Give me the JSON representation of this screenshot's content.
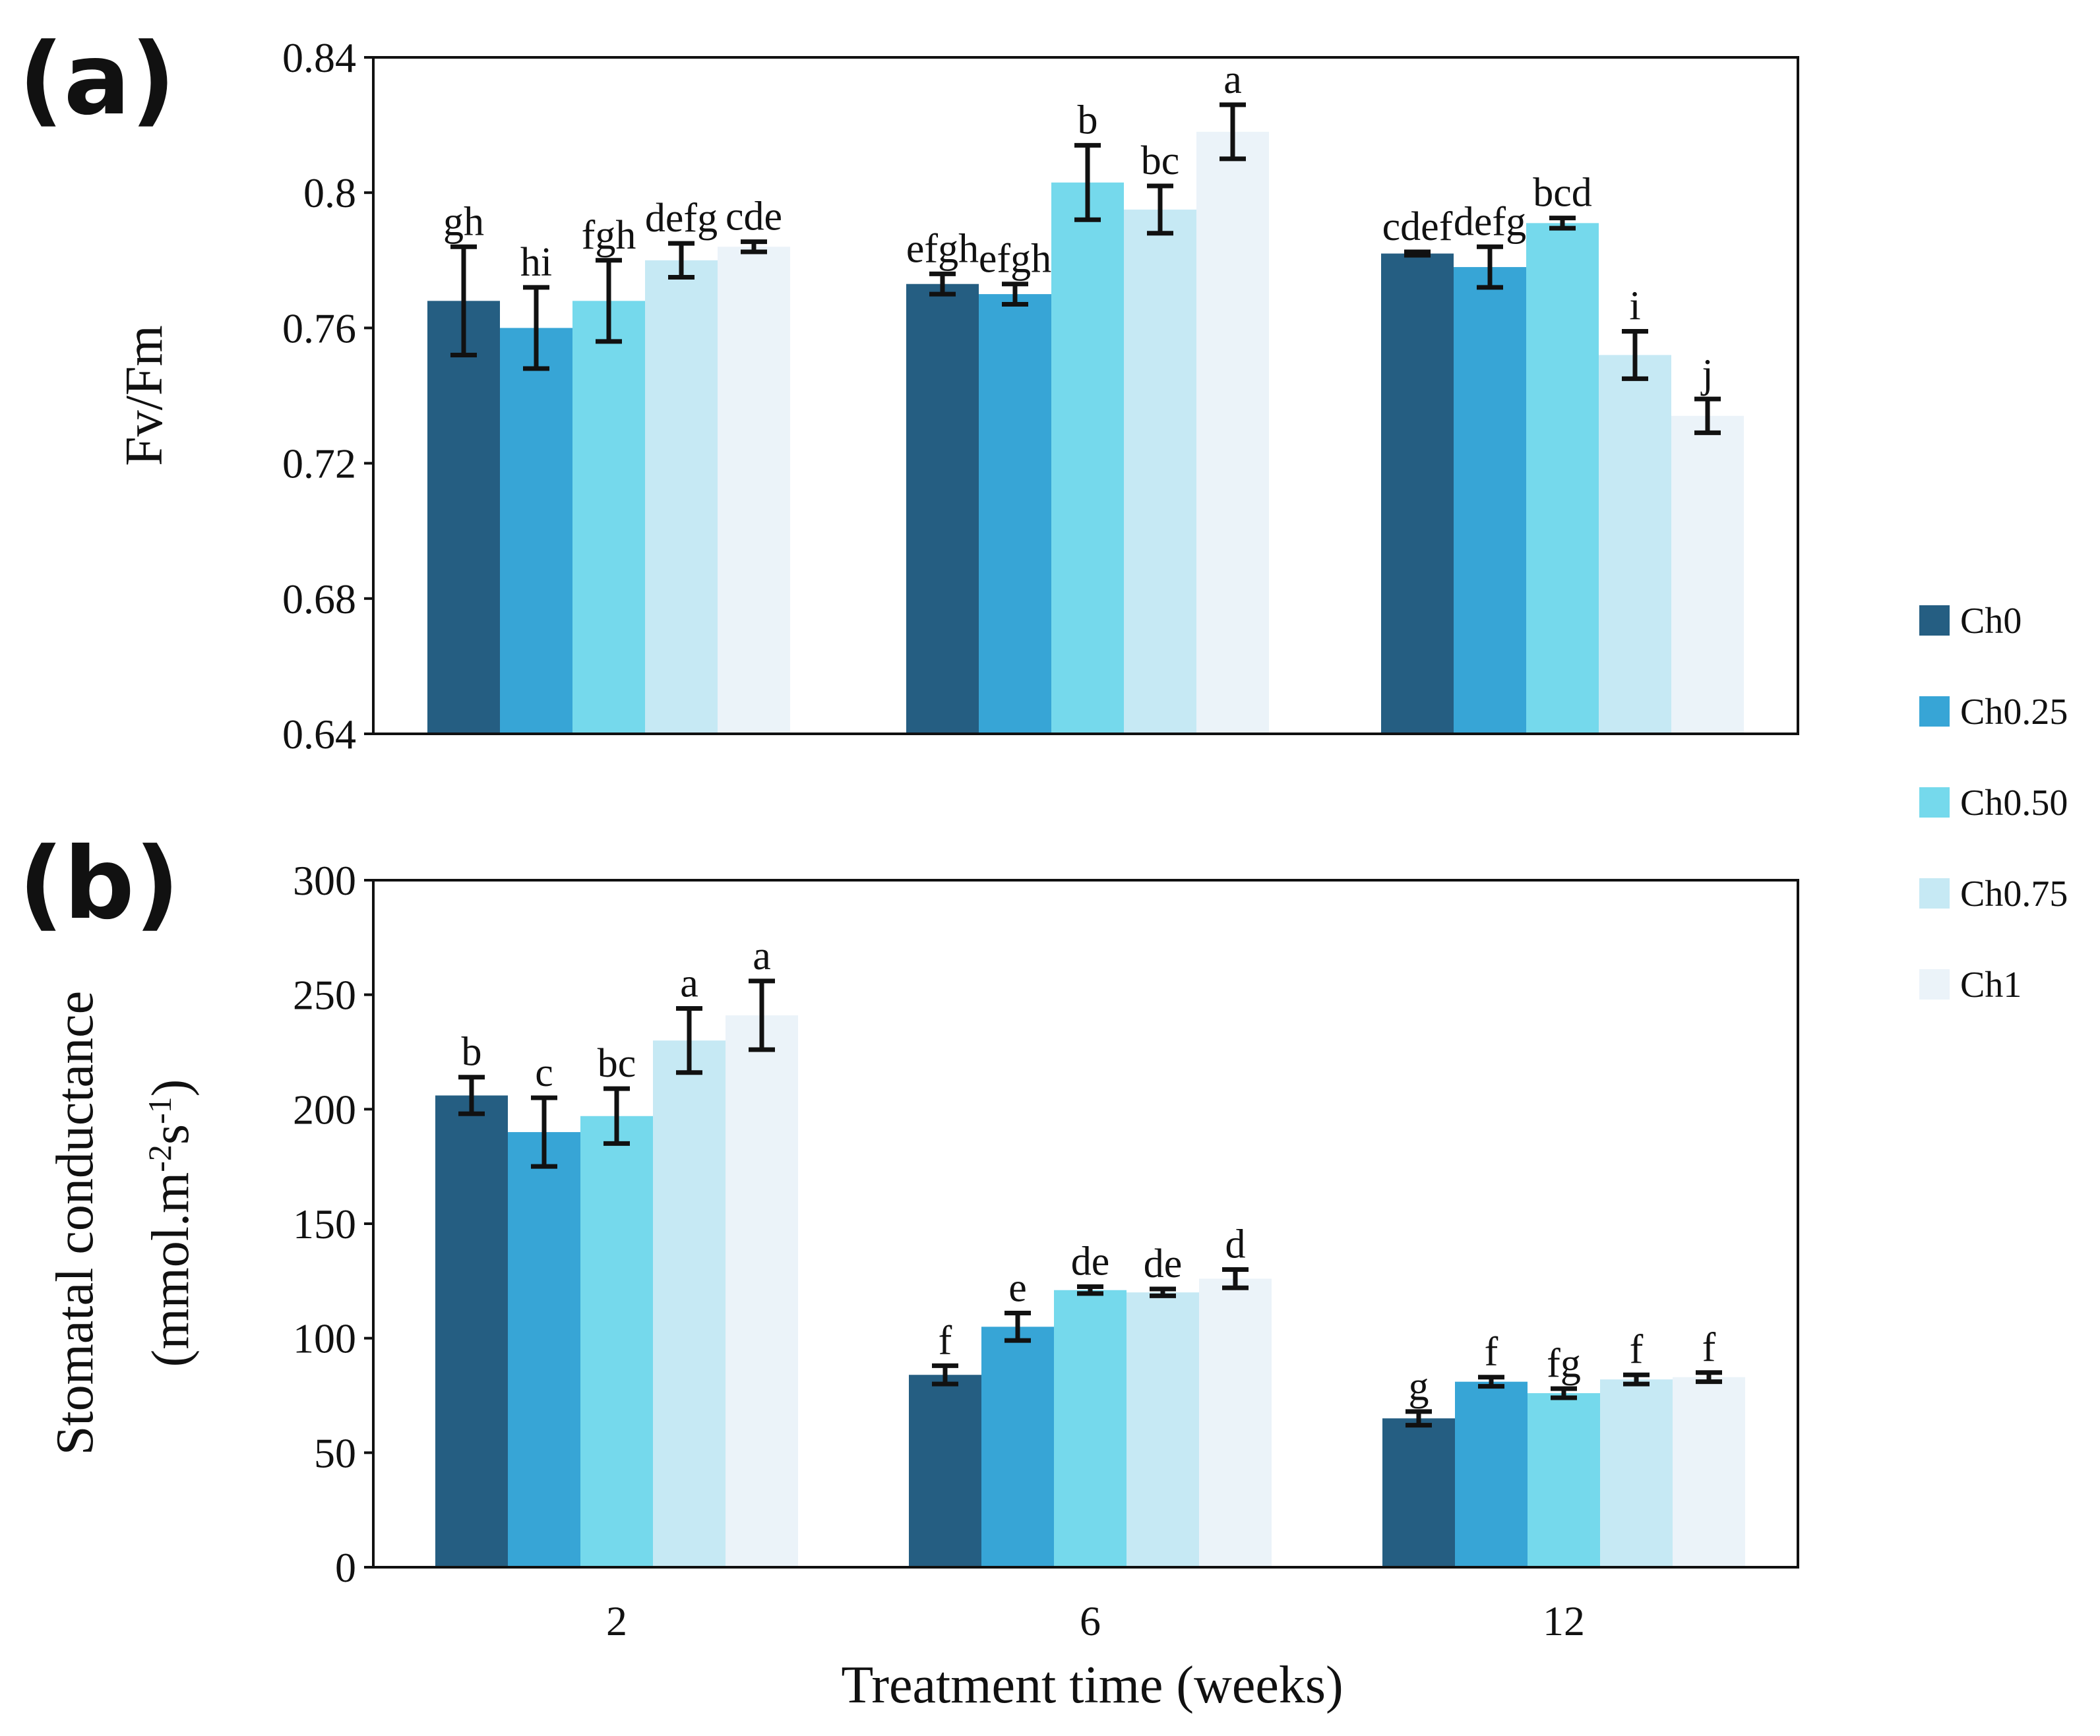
{
  "chart_data": [
    {
      "panel": "(a)",
      "type": "bar",
      "ylabel": "Fv/Fm",
      "ylim": [
        0.64,
        0.84
      ],
      "yticks": [
        "0.64",
        "0.68",
        "0.72",
        "0.76",
        "0.8",
        "0.84"
      ],
      "categories": [
        "2",
        "6",
        "12"
      ],
      "series": [
        {
          "name": "Ch0",
          "values": [
            0.768,
            0.773,
            0.782
          ],
          "errors": [
            0.016,
            0.003,
            0.0005
          ],
          "letters": [
            "gh",
            "efgh",
            "cdef"
          ]
        },
        {
          "name": "Ch0.25",
          "values": [
            0.76,
            0.77,
            0.778
          ],
          "errors": [
            0.012,
            0.003,
            0.006
          ],
          "letters": [
            "hi",
            "efgh",
            "defg"
          ]
        },
        {
          "name": "Ch0.50",
          "values": [
            0.768,
            0.803,
            0.791
          ],
          "errors": [
            0.012,
            0.011,
            0.0015
          ],
          "letters": [
            "fgh",
            "b",
            "bcd"
          ]
        },
        {
          "name": "Ch0.75",
          "values": [
            0.78,
            0.795,
            0.752
          ],
          "errors": [
            0.005,
            0.007,
            0.007
          ],
          "letters": [
            "defg",
            "bc",
            "i"
          ]
        },
        {
          "name": "Ch1",
          "values": [
            0.784,
            0.818,
            0.734
          ],
          "errors": [
            0.0015,
            0.008,
            0.005
          ],
          "letters": [
            "cde",
            "a",
            "j"
          ]
        }
      ]
    },
    {
      "panel": "(b)",
      "type": "bar",
      "ylabel": "Stomatal conductance",
      "ylabel_line2": "(mmol.m",
      "ylabel_sup1": "-2",
      "ylabel_mid": "s",
      "ylabel_sup2": "-1",
      "ylabel_end": ")",
      "xlabel": "Treatment time (weeks)",
      "ylim": [
        0,
        300
      ],
      "yticks": [
        "0",
        "50",
        "100",
        "150",
        "200",
        "250",
        "300"
      ],
      "categories": [
        "2",
        "6",
        "12"
      ],
      "series": [
        {
          "name": "Ch0",
          "values": [
            206,
            84,
            65
          ],
          "errors": [
            8,
            4,
            3
          ],
          "letters": [
            "b",
            "f",
            "g"
          ]
        },
        {
          "name": "Ch0.25",
          "values": [
            190,
            105,
            81
          ],
          "errors": [
            15,
            6,
            2
          ],
          "letters": [
            "c",
            "e",
            "f"
          ]
        },
        {
          "name": "Ch0.50",
          "values": [
            197,
            121,
            76
          ],
          "errors": [
            12,
            1.5,
            2
          ],
          "letters": [
            "bc",
            "de",
            "fg"
          ]
        },
        {
          "name": "Ch0.75",
          "values": [
            230,
            120,
            82
          ],
          "errors": [
            14,
            1.5,
            2
          ],
          "letters": [
            "a",
            "de",
            "f"
          ]
        },
        {
          "name": "Ch1",
          "values": [
            241,
            126,
            83
          ],
          "errors": [
            15,
            4,
            2
          ],
          "letters": [
            "a",
            "d",
            "f"
          ]
        }
      ]
    }
  ],
  "legend": {
    "items": [
      "Ch0",
      "Ch0.25",
      "Ch0.50",
      "Ch0.75",
      "Ch1"
    ],
    "colors": [
      "#255e82",
      "#37a5d6",
      "#75d9ec",
      "#c6e9f4",
      "#ebf3f9"
    ]
  }
}
